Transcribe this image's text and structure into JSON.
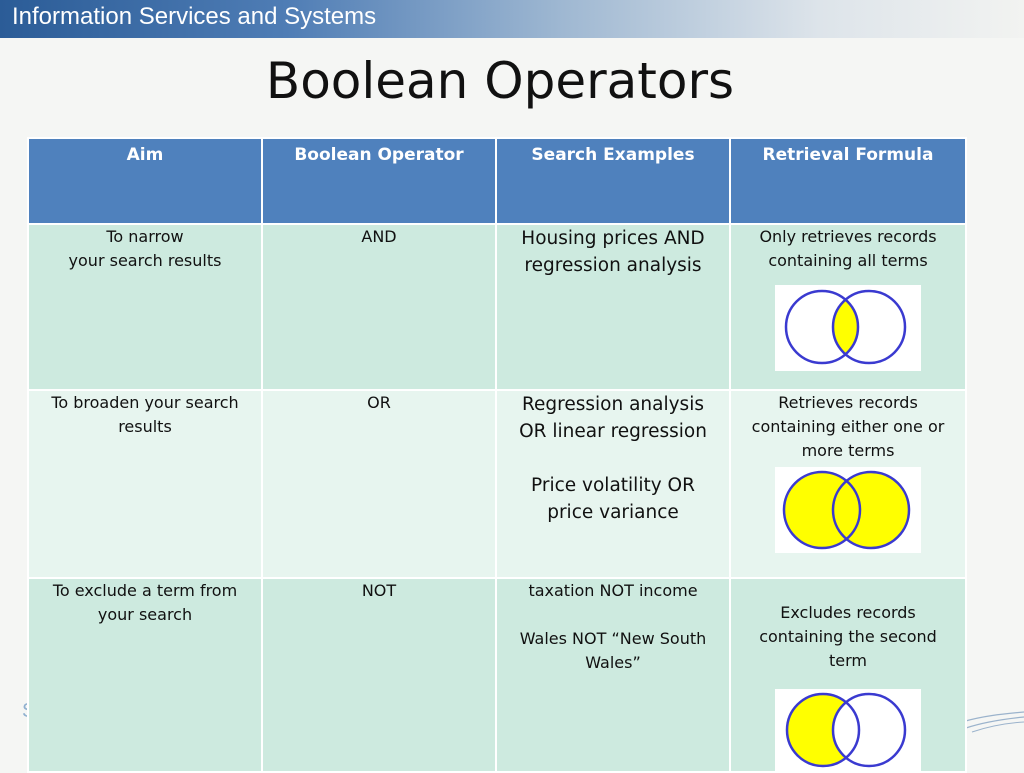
{
  "header": {
    "banner_title": "Information Services and Systems"
  },
  "slide": {
    "title": "Boolean Operators"
  },
  "table": {
    "headers": [
      "Aim",
      "Boolean Operator",
      "Search Examples",
      "Retrieval Formula"
    ],
    "rows": [
      {
        "aim_line1": "To narrow",
        "aim_line2": "your search results",
        "operator": "AND",
        "example1": "Housing prices AND regression analysis",
        "formula": "Only retrieves records containing all terms",
        "diagram": "and-venn-icon"
      },
      {
        "aim": "To broaden your search results",
        "operator": "OR",
        "example1": "Regression analysis OR linear regression",
        "example2": "Price volatility OR price variance",
        "formula": "Retrieves records containing either one or more terms",
        "diagram": "or-venn-icon"
      },
      {
        "aim": "To exclude a term from your search",
        "operator": "NOT",
        "example1": "taxation NOT income",
        "example2": "Wales NOT “New South Wales”",
        "formula": "Excludes records containing the second term",
        "diagram": "not-venn-icon"
      }
    ]
  },
  "colors": {
    "header_fill": "#4f81bd",
    "row_fill_dark": "#cdeadf",
    "row_fill_light": "#e7f5ef",
    "venn_fill": "#ffff00",
    "venn_stroke": "#3a3ad0"
  }
}
